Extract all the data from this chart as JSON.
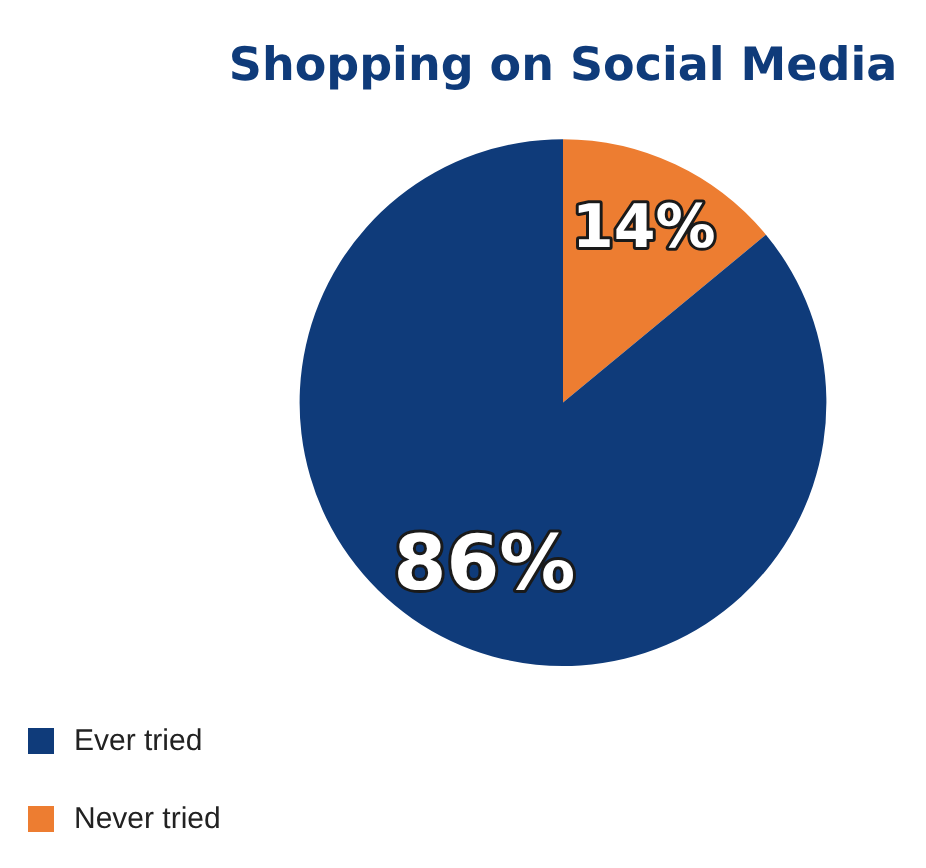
{
  "chart_data": {
    "type": "pie",
    "title": "Shopping on Social Media",
    "categories": [
      "Never tried",
      "Ever tried"
    ],
    "values": [
      14,
      86
    ],
    "value_labels": [
      "14%",
      "86%"
    ],
    "colors": [
      "#ed7d31",
      "#0f3b7a"
    ],
    "legend": "bottom left"
  }
}
